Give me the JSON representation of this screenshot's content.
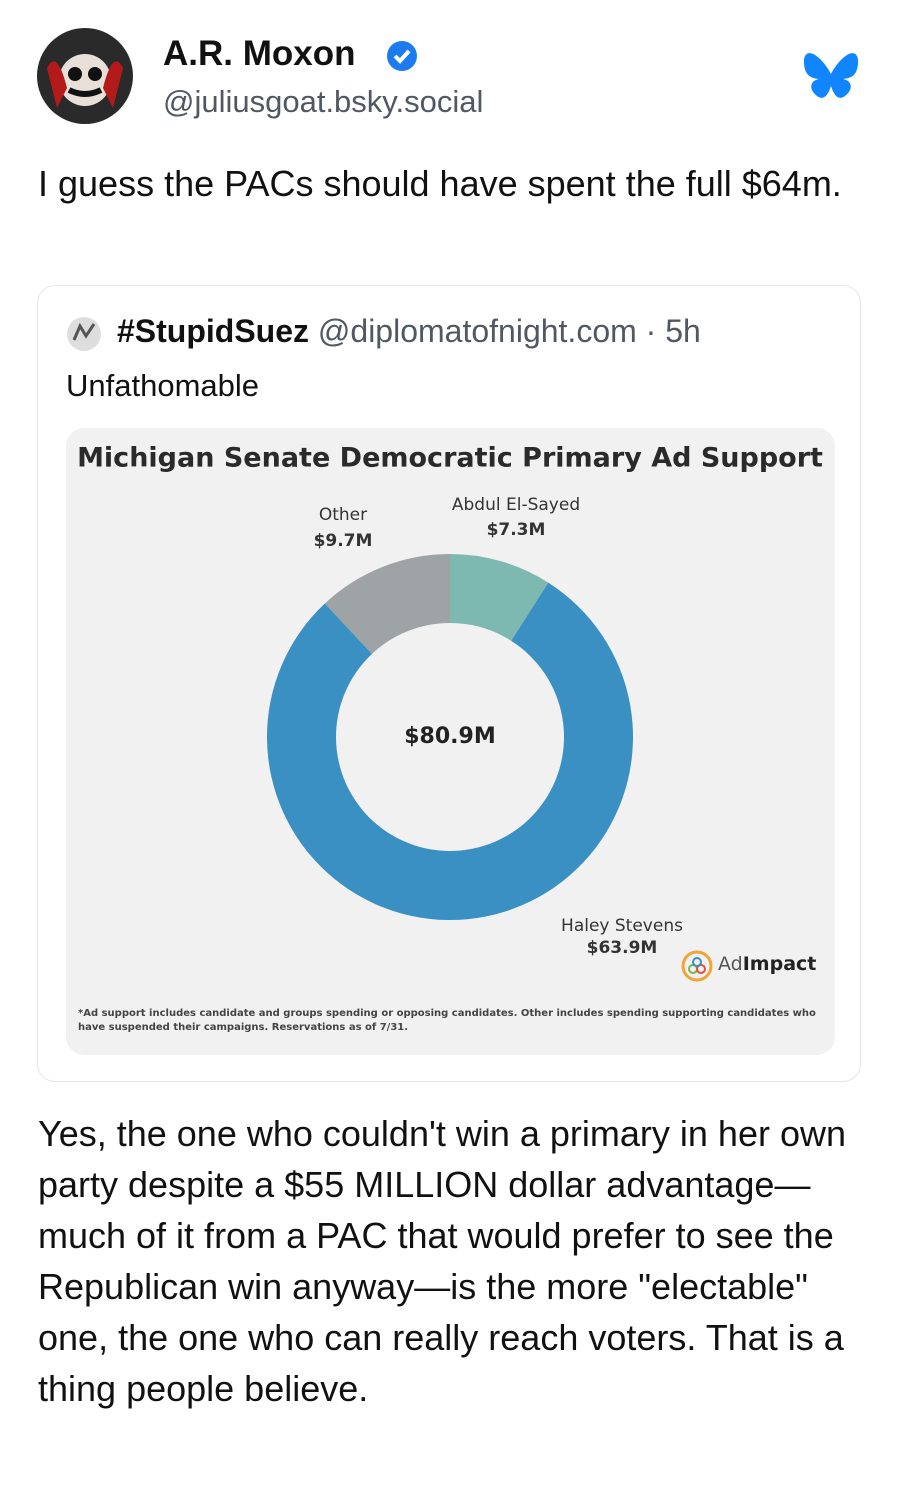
{
  "post": {
    "author": "A.R. Moxon",
    "handle": "@juliusgoat.bsky.social",
    "text": "I guess the PACs should have spent the full $64m.",
    "reply": "Yes, the one who couldn't win a primary in her own party despite a $55 MILLION dollar advantage—much of it from a PAC that would prefer to see the Republican win anyway—is the more \"electable\" one, the one who can really reach voters. That is a thing people believe."
  },
  "quote": {
    "author": "#StupidSuez",
    "handle": "@diplomatofnight.com",
    "separator": "·",
    "time": "5h",
    "text": "Unfathomable",
    "footnote": "*Ad support includes candidate and groups spending or opposing candidates. Other includes spending supporting candidates who have suspended their campaigns. Reservations as of 7/31.",
    "source": {
      "light": "Ad",
      "bold": "Impact"
    }
  },
  "chart_data": {
    "type": "donut",
    "title": "Michigan Senate Democratic Primary Ad Support",
    "center_label": "$80.9M",
    "categories": [
      "Abdul El-Sayed",
      "Haley Stevens",
      "Other"
    ],
    "values": [
      7.3,
      63.9,
      9.7
    ],
    "value_labels": [
      "$7.3M",
      "$63.9M",
      "$9.7M"
    ],
    "colors": [
      "#7db9b1",
      "#3a8fc3",
      "#9ea3a5"
    ]
  }
}
